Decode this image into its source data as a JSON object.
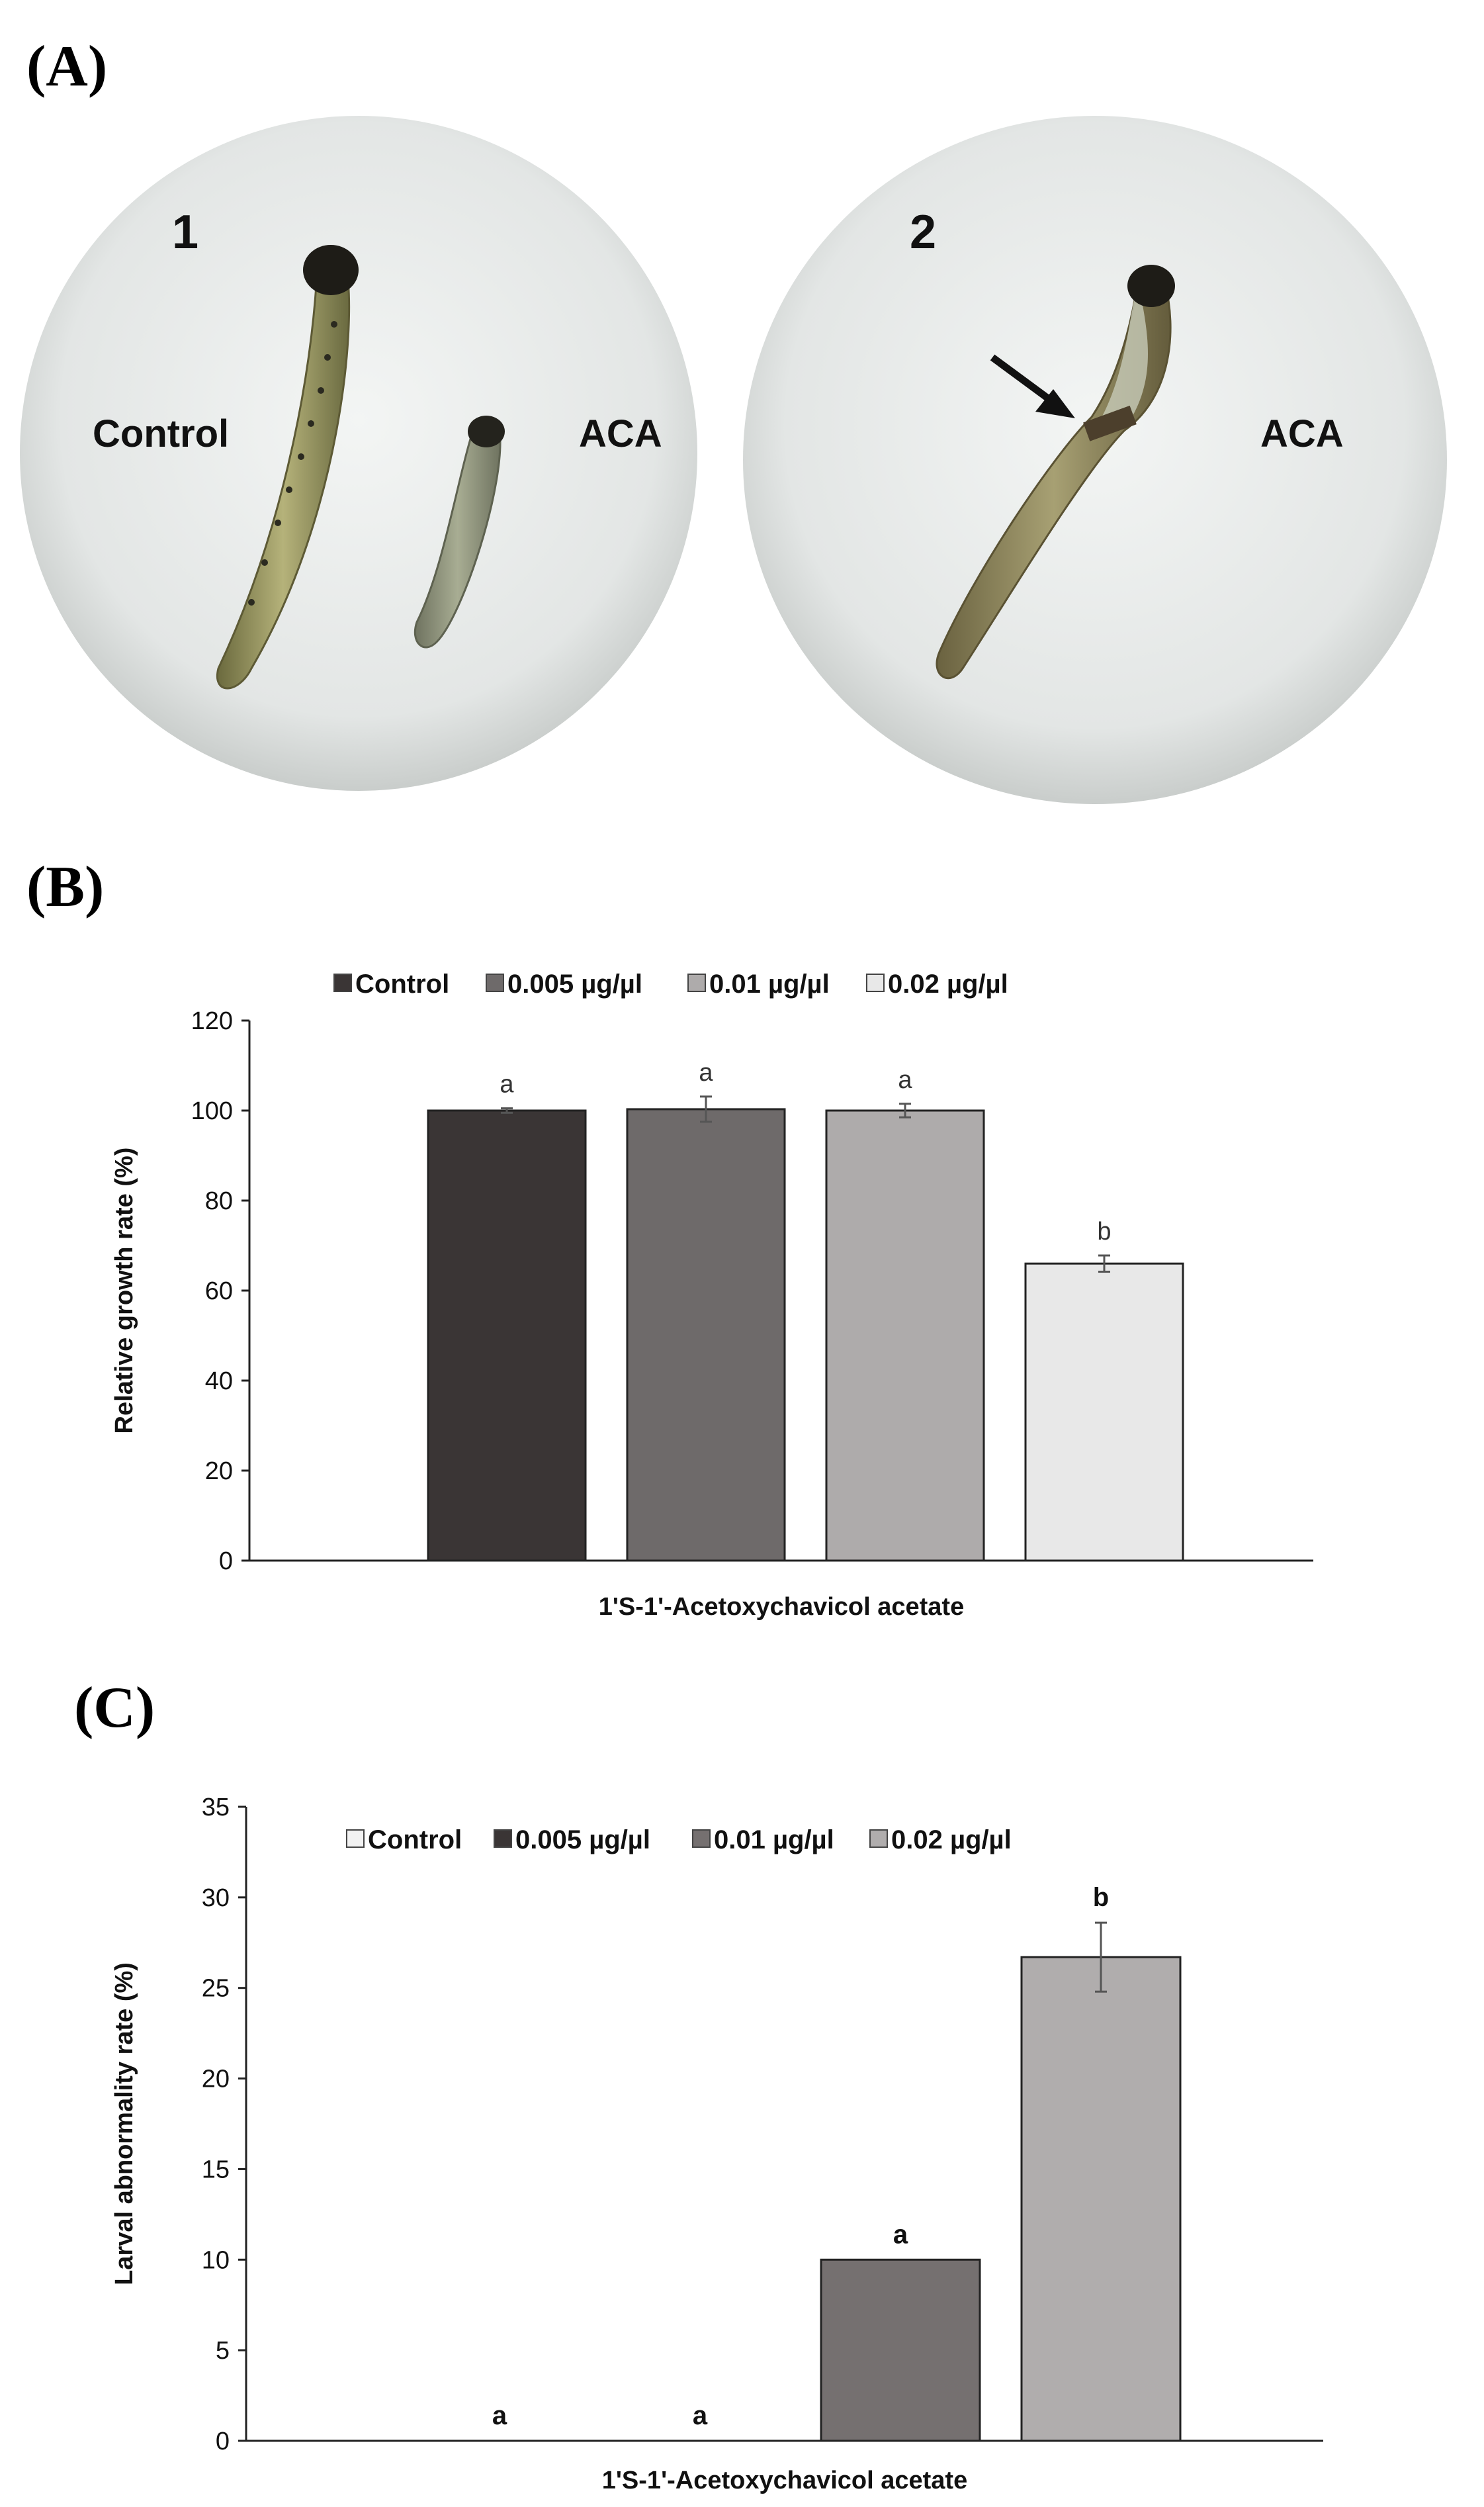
{
  "panels": {
    "a": {
      "letter": "(A)",
      "photo1": {
        "number": "1",
        "left_label": "Control",
        "right_label": "ACA"
      },
      "photo2": {
        "number": "2",
        "right_label": "ACA"
      }
    },
    "b": {
      "letter": "(B)"
    },
    "c": {
      "letter": "(C)"
    }
  },
  "chart_data": [
    {
      "type": "bar",
      "ylabel": "Relative growth rate (%)",
      "xlabel": "1'S-1'-Acetoxychavicol acetate",
      "ylim": [
        0,
        120
      ],
      "yticks": [
        0,
        20,
        40,
        60,
        80,
        100,
        120
      ],
      "legend_position": "top",
      "series": [
        {
          "name": "Control",
          "value": 100,
          "error": 0.5,
          "sig": "a",
          "color": "#3a3535"
        },
        {
          "name": "0.005 µg/µl",
          "value": 100.3,
          "error": 2.8,
          "sig": "a",
          "color": "#6e6a6a"
        },
        {
          "name": "0.01 µg/µl",
          "value": 100,
          "error": 1.5,
          "sig": "a",
          "color": "#aeabab"
        },
        {
          "name": "0.02 µg/µl",
          "value": 66,
          "error": 1.8,
          "sig": "b",
          "color": "#e8e8e8"
        }
      ]
    },
    {
      "type": "bar",
      "ylabel": "Larval abnormality rate (%)",
      "xlabel": "1'S-1'-Acetoxychavicol acetate",
      "ylim": [
        0,
        35
      ],
      "yticks": [
        0,
        5,
        10,
        15,
        20,
        25,
        30,
        35
      ],
      "legend_position": "top",
      "series": [
        {
          "name": "Control",
          "value": 0,
          "error": 0,
          "sig": "a",
          "color": "#f2f2f2"
        },
        {
          "name": "0.005 µg/µl",
          "value": 0,
          "error": 0,
          "sig": "a",
          "color": "#3a3535"
        },
        {
          "name": "0.01 µg/µl",
          "value": 10,
          "error": 0,
          "sig": "a",
          "color": "#757070"
        },
        {
          "name": "0.02 µg/µl",
          "value": 26.7,
          "error": 1.9,
          "sig": "b",
          "color": "#b0adad"
        }
      ]
    }
  ]
}
